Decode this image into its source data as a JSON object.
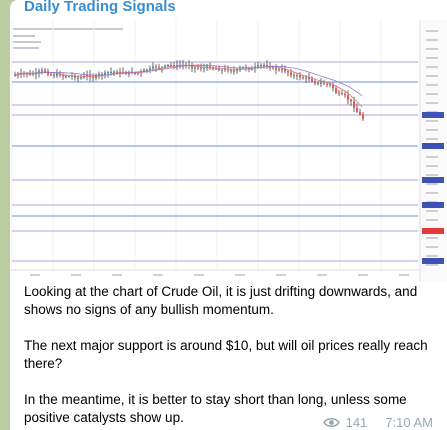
{
  "channel": {
    "title": "Daily Trading Signals"
  },
  "chart": {
    "icon": "candlestick-chart-image",
    "colors": {
      "up": "#26a69a",
      "down": "#ef5350",
      "wick": "#444444",
      "hline": "#b39ddb",
      "hline_blue": "#6f8fd8"
    }
  },
  "post": {
    "paragraphs": [
      "Looking at the chart of Crude Oil, it is just drifting downwards, and shows no signs of any bullish momentum.",
      "The next major support is around $10, but will oil prices really reach there?",
      "In the meantime, it is better to stay short than long, unless some positive catalysts show up."
    ]
  },
  "meta": {
    "views": "141",
    "time": "7:10 AM",
    "views_icon": "eye-icon"
  }
}
